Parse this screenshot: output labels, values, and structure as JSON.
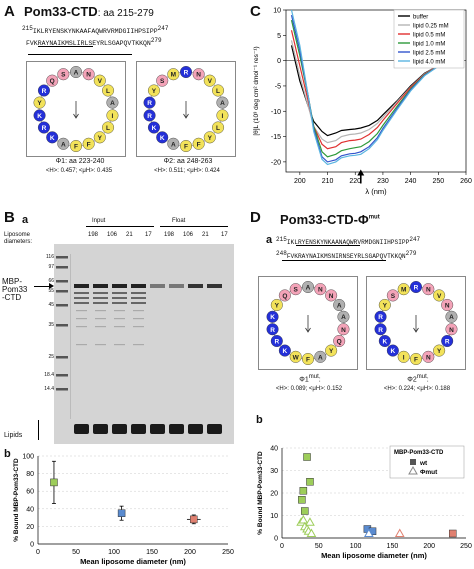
{
  "panelA": {
    "label": "A",
    "title_bold": "Pom33-CTD",
    "title_light": ": aa 215-279",
    "seq_line1_start": "215",
    "seq_line1": "IKLRYENSKYNKAAFAQWRVRMDGIIHPSIPP",
    "seq_line1_end": "247",
    "seq_line2": "FVKRAYNAIKMSLIRLSEYRLSGAPQVTKKQN",
    "seq_line2_end": "279",
    "wheel1_caption": "Φ1: aa 223-240",
    "wheel1_stats": "<H>: 0.457; <μH>: 0.435",
    "wheel2_caption": "Φ2: aa 248-263",
    "wheel2_stats": "<H>: 0.511; <μH>: 0.424",
    "wheel1": [
      "A",
      "N",
      "V",
      "L",
      "A",
      "I",
      "L",
      "Y",
      "F",
      "F",
      "A",
      "K",
      "R",
      "K",
      "Y",
      "R",
      "Q",
      "S"
    ],
    "wheel2": [
      "R",
      "N",
      "V",
      "L",
      "A",
      "I",
      "L",
      "Y",
      "F",
      "F",
      "A",
      "K",
      "K",
      "R",
      "R",
      "Y",
      "S",
      "M"
    ]
  },
  "panelB": {
    "label": "B",
    "sub_a": "a",
    "sub_b": "b",
    "liposome_label": "Liposome diameters:",
    "input_label": "Input",
    "float_label": "Float",
    "lane_labels": [
      "198",
      "106",
      "21",
      "17",
      "198",
      "106",
      "21",
      "17"
    ],
    "mw_markers": [
      "116",
      "97",
      "66",
      "55",
      "45",
      "35",
      "25",
      "18.4",
      "14.4"
    ],
    "protein_label_line1": "MBP-",
    "protein_label_line2": "Pom33",
    "protein_label_line3": "-CTD",
    "lipids_label": "Lipids"
  },
  "panelC": {
    "label": "C"
  },
  "panelD": {
    "label": "D",
    "sub_a": "a",
    "sub_b": "b",
    "title": "Pom33-CTD-Φ",
    "title_sup": "mut",
    "seq_line1_start": "215",
    "seq_line1": "IKLRYENSKYNKAANAQWRVRMDGNIIHPSIPP",
    "seq_line1_end": "247",
    "seq_line2_start": "248",
    "seq_line2": "FVKRAYNAIKMSNIRNSEYRLSGAPQVTKKQN",
    "seq_line2_end": "279",
    "wheel1_caption": "Φ1",
    "wheel1_sup": "mut",
    "wheel1_stats": "<H>: 0.089; <μH>: 0.152",
    "wheel2_caption": "Φ2",
    "wheel2_sup": "mut",
    "wheel2_stats": "<H>: 0.224; <μH>: 0.188",
    "wheel1": [
      "A",
      "N",
      "N",
      "A",
      "A",
      "N",
      "Q",
      "Y",
      "A",
      "F",
      "W",
      "K",
      "R",
      "R",
      "K",
      "Y",
      "Q",
      "S"
    ],
    "wheel2": [
      "R",
      "N",
      "V",
      "N",
      "A",
      "N",
      "R",
      "Y",
      "N",
      "F",
      "I",
      "K",
      "K",
      "R",
      "R",
      "Y",
      "S",
      "M"
    ]
  },
  "colors": {
    "hydrophobic": "#f2e25a",
    "positive": "#2430d8",
    "negative": "#d83030",
    "polar": "#f3a3b8",
    "special": "#a64dc8",
    "small": "#b0b0b0",
    "wt_marker": "#555555",
    "mut_marker": "#888888",
    "green_point": "#9dcd5a",
    "blue_point": "#5a8bd0",
    "red_point": "#e08070"
  },
  "chart_data": [
    {
      "type": "line",
      "panel": "C",
      "xlabel": "λ (nm)",
      "ylabel": "[θ]L (10³ deg cm² dmol⁻¹ res⁻¹)",
      "xlim": [
        195,
        260
      ],
      "ylim": [
        -22,
        10
      ],
      "xticks": [
        200,
        210,
        220,
        230,
        240,
        250,
        260
      ],
      "yticks": [
        10,
        5,
        0,
        -5,
        -10,
        -15,
        -20
      ],
      "annotation": "arrow at 222 nm",
      "legend_position": "top-right",
      "series": [
        {
          "name": "buffer",
          "color": "#000000",
          "x": [
            197,
            200,
            203,
            205,
            208,
            210,
            213,
            215,
            218,
            220,
            222,
            225,
            228,
            230,
            235,
            240,
            245,
            250,
            255,
            258
          ],
          "y": [
            3,
            -4,
            -9,
            -12,
            -14,
            -14.8,
            -14.3,
            -13.8,
            -13.6,
            -13.5,
            -13.3,
            -12.8,
            -11.8,
            -10.7,
            -8,
            -5,
            -2.5,
            -1,
            -0.3,
            0
          ]
        },
        {
          "name": "lipid 0.25 mM",
          "color": "#b5b5b5",
          "x": [
            197,
            200,
            203,
            205,
            208,
            210,
            213,
            215,
            218,
            220,
            222,
            225,
            228,
            230,
            235,
            240,
            245,
            250,
            255,
            258
          ],
          "y": [
            4,
            -3,
            -9,
            -13,
            -15.5,
            -16.2,
            -15.8,
            -15,
            -14.6,
            -14.5,
            -14.3,
            -13.6,
            -12.4,
            -11.2,
            -8.2,
            -5.2,
            -2.6,
            -1,
            -0.3,
            0
          ]
        },
        {
          "name": "lipid 0.5 mM",
          "color": "#e03030",
          "x": [
            197,
            200,
            203,
            205,
            208,
            210,
            213,
            215,
            218,
            220,
            222,
            225,
            228,
            230,
            235,
            240,
            245,
            250,
            255,
            258
          ],
          "y": [
            6,
            -1,
            -8,
            -13,
            -16.5,
            -17.4,
            -17,
            -16.2,
            -15.8,
            -15.7,
            -15.5,
            -14.6,
            -13.2,
            -11.8,
            -8.5,
            -5.3,
            -2.7,
            -1,
            -0.3,
            0
          ]
        },
        {
          "name": "lipid 1.0 mM",
          "color": "#2e9a3a",
          "x": [
            197,
            200,
            203,
            205,
            208,
            210,
            213,
            215,
            218,
            220,
            222,
            225,
            228,
            230,
            235,
            240,
            245,
            250,
            255,
            258
          ],
          "y": [
            8,
            1,
            -7,
            -13,
            -18,
            -19,
            -18.5,
            -17.8,
            -17.4,
            -17.2,
            -17,
            -16,
            -14.4,
            -12.8,
            -9.1,
            -5.6,
            -2.8,
            -1.1,
            -0.3,
            0
          ]
        },
        {
          "name": "lipid 2.5 mM",
          "color": "#3355cc",
          "x": [
            197,
            200,
            203,
            205,
            208,
            210,
            213,
            215,
            218,
            220,
            222,
            225,
            228,
            230,
            235,
            240,
            245,
            250,
            255,
            258
          ],
          "y": [
            9,
            2,
            -7,
            -13.5,
            -19,
            -20,
            -19.6,
            -18.8,
            -18.4,
            -18.3,
            -18,
            -17,
            -15.2,
            -13.4,
            -9.5,
            -5.8,
            -2.9,
            -1.1,
            -0.3,
            0
          ]
        },
        {
          "name": "lipid 4.0 mM",
          "color": "#5ab5e0",
          "x": [
            197,
            200,
            203,
            205,
            208,
            210,
            213,
            215,
            218,
            220,
            222,
            225,
            228,
            230,
            235,
            240,
            245,
            250,
            255,
            258
          ],
          "y": [
            10,
            3,
            -7,
            -14,
            -19.5,
            -20.5,
            -20,
            -19.2,
            -18.8,
            -18.7,
            -18.5,
            -17.4,
            -15.6,
            -13.8,
            -9.8,
            -6,
            -3,
            -1.1,
            -0.3,
            0
          ]
        }
      ]
    },
    {
      "type": "scatter",
      "panel": "Bb",
      "xlabel": "Mean liposome diameter (nm)",
      "ylabel": "% Bound MBP-Pom33-CTD",
      "xlim": [
        0,
        250
      ],
      "ylim": [
        0,
        100
      ],
      "xticks": [
        0,
        50,
        100,
        150,
        200,
        250
      ],
      "yticks": [
        0,
        20,
        40,
        60,
        80,
        100
      ],
      "grid": true,
      "points": [
        {
          "x": 21,
          "y": 70,
          "xerr": 1,
          "yerr": 24,
          "color": "#9dcd5a"
        },
        {
          "x": 110,
          "y": 35,
          "xerr": 4,
          "yerr": 8,
          "color": "#5a8bd0"
        },
        {
          "x": 205,
          "y": 28,
          "xerr": 9,
          "yerr": 5,
          "color": "#e08070"
        }
      ]
    },
    {
      "type": "scatter",
      "panel": "Db",
      "xlabel": "Mean liposome diameter (nm)",
      "ylabel": "% Bound MBP-Pom33-CTD",
      "xlim": [
        0,
        250
      ],
      "ylim": [
        0,
        40
      ],
      "xticks": [
        0,
        50,
        100,
        150,
        200,
        250
      ],
      "yticks": [
        0,
        10,
        20,
        30,
        40
      ],
      "grid": true,
      "legend_title": "MBP-Pom33-CTD",
      "legend_position": "top-right",
      "series": [
        {
          "name": "wt",
          "marker": "square",
          "points": [
            [
              27,
              17
            ],
            [
              29,
              21
            ],
            [
              31,
              12
            ],
            [
              34,
              36
            ],
            [
              38,
              25
            ],
            [
              116,
              4
            ],
            [
              123,
              3
            ],
            [
              232,
              2
            ]
          ]
        },
        {
          "name": "Φmut",
          "marker": "triangle",
          "points": [
            [
              26,
              7
            ],
            [
              29,
              8
            ],
            [
              31,
              5
            ],
            [
              34,
              4
            ],
            [
              36,
              3
            ],
            [
              38,
              7
            ],
            [
              40,
              2
            ],
            [
              118,
              2
            ],
            [
              160,
              2
            ]
          ]
        }
      ]
    }
  ]
}
